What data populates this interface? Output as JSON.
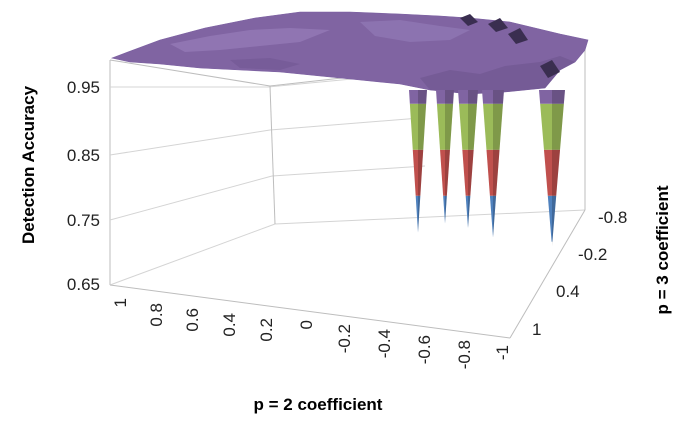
{
  "chart_data": {
    "type": "surface",
    "title": "",
    "zlabel": "Detection Accuracy",
    "xlabel": "p = 2 coefficient",
    "ylabel": "p = 3 coefficient",
    "z_ticks": [
      "0.65",
      "0.75",
      "0.85",
      "0.95"
    ],
    "x_ticks": [
      "1",
      "0.8",
      "0.6",
      "0.4",
      "0.2",
      "0",
      "-0.2",
      "-0.4",
      "-0.6",
      "-0.8",
      "-1"
    ],
    "y_ticks": [
      "-0.8",
      "-0.2",
      "0.4",
      "1"
    ],
    "zlim": [
      0.65,
      1.0
    ],
    "band_colors": [
      "#4f81bd",
      "#c0504d",
      "#9bbb59",
      "#8064a2"
    ],
    "band_ranges": [
      [
        0.65,
        0.75
      ],
      [
        0.75,
        0.85
      ],
      [
        0.85,
        0.95
      ],
      [
        0.95,
        1.0
      ]
    ],
    "plateau_value": 0.98,
    "spikes": [
      {
        "x": -0.55,
        "y": -0.55,
        "min_accuracy": 0.67
      },
      {
        "x": -0.65,
        "y": -0.65,
        "min_accuracy": 0.69
      },
      {
        "x": -0.75,
        "y": -0.75,
        "min_accuracy": 0.68
      },
      {
        "x": -0.85,
        "y": -0.85,
        "min_accuracy": 0.66
      },
      {
        "x": -0.95,
        "y": -0.95,
        "min_accuracy": 0.64
      }
    ]
  }
}
